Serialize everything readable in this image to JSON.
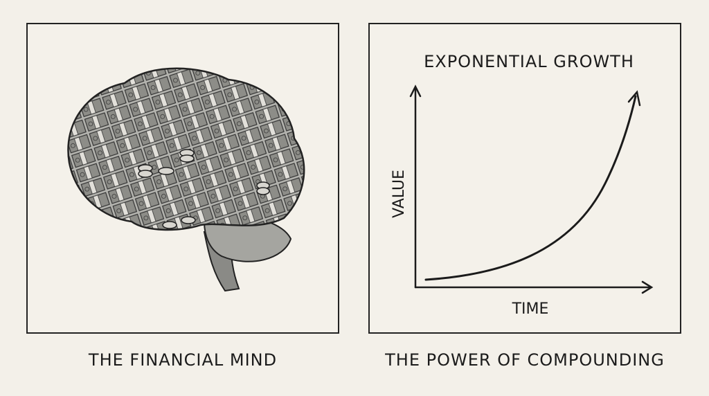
{
  "left_panel": {
    "illustration": "brain made of banknotes and coins",
    "caption": "THE FINANCIAL MIND"
  },
  "right_panel": {
    "title": "EXPONENTIAL GROWTH",
    "y_label": "VALUE",
    "x_label": "TIME",
    "caption": "THE POWER OF COMPOUNDING"
  },
  "colors": {
    "background": "#f3f0e9",
    "ink": "#1b1b1b",
    "brain_gray": "#9a9a96"
  }
}
